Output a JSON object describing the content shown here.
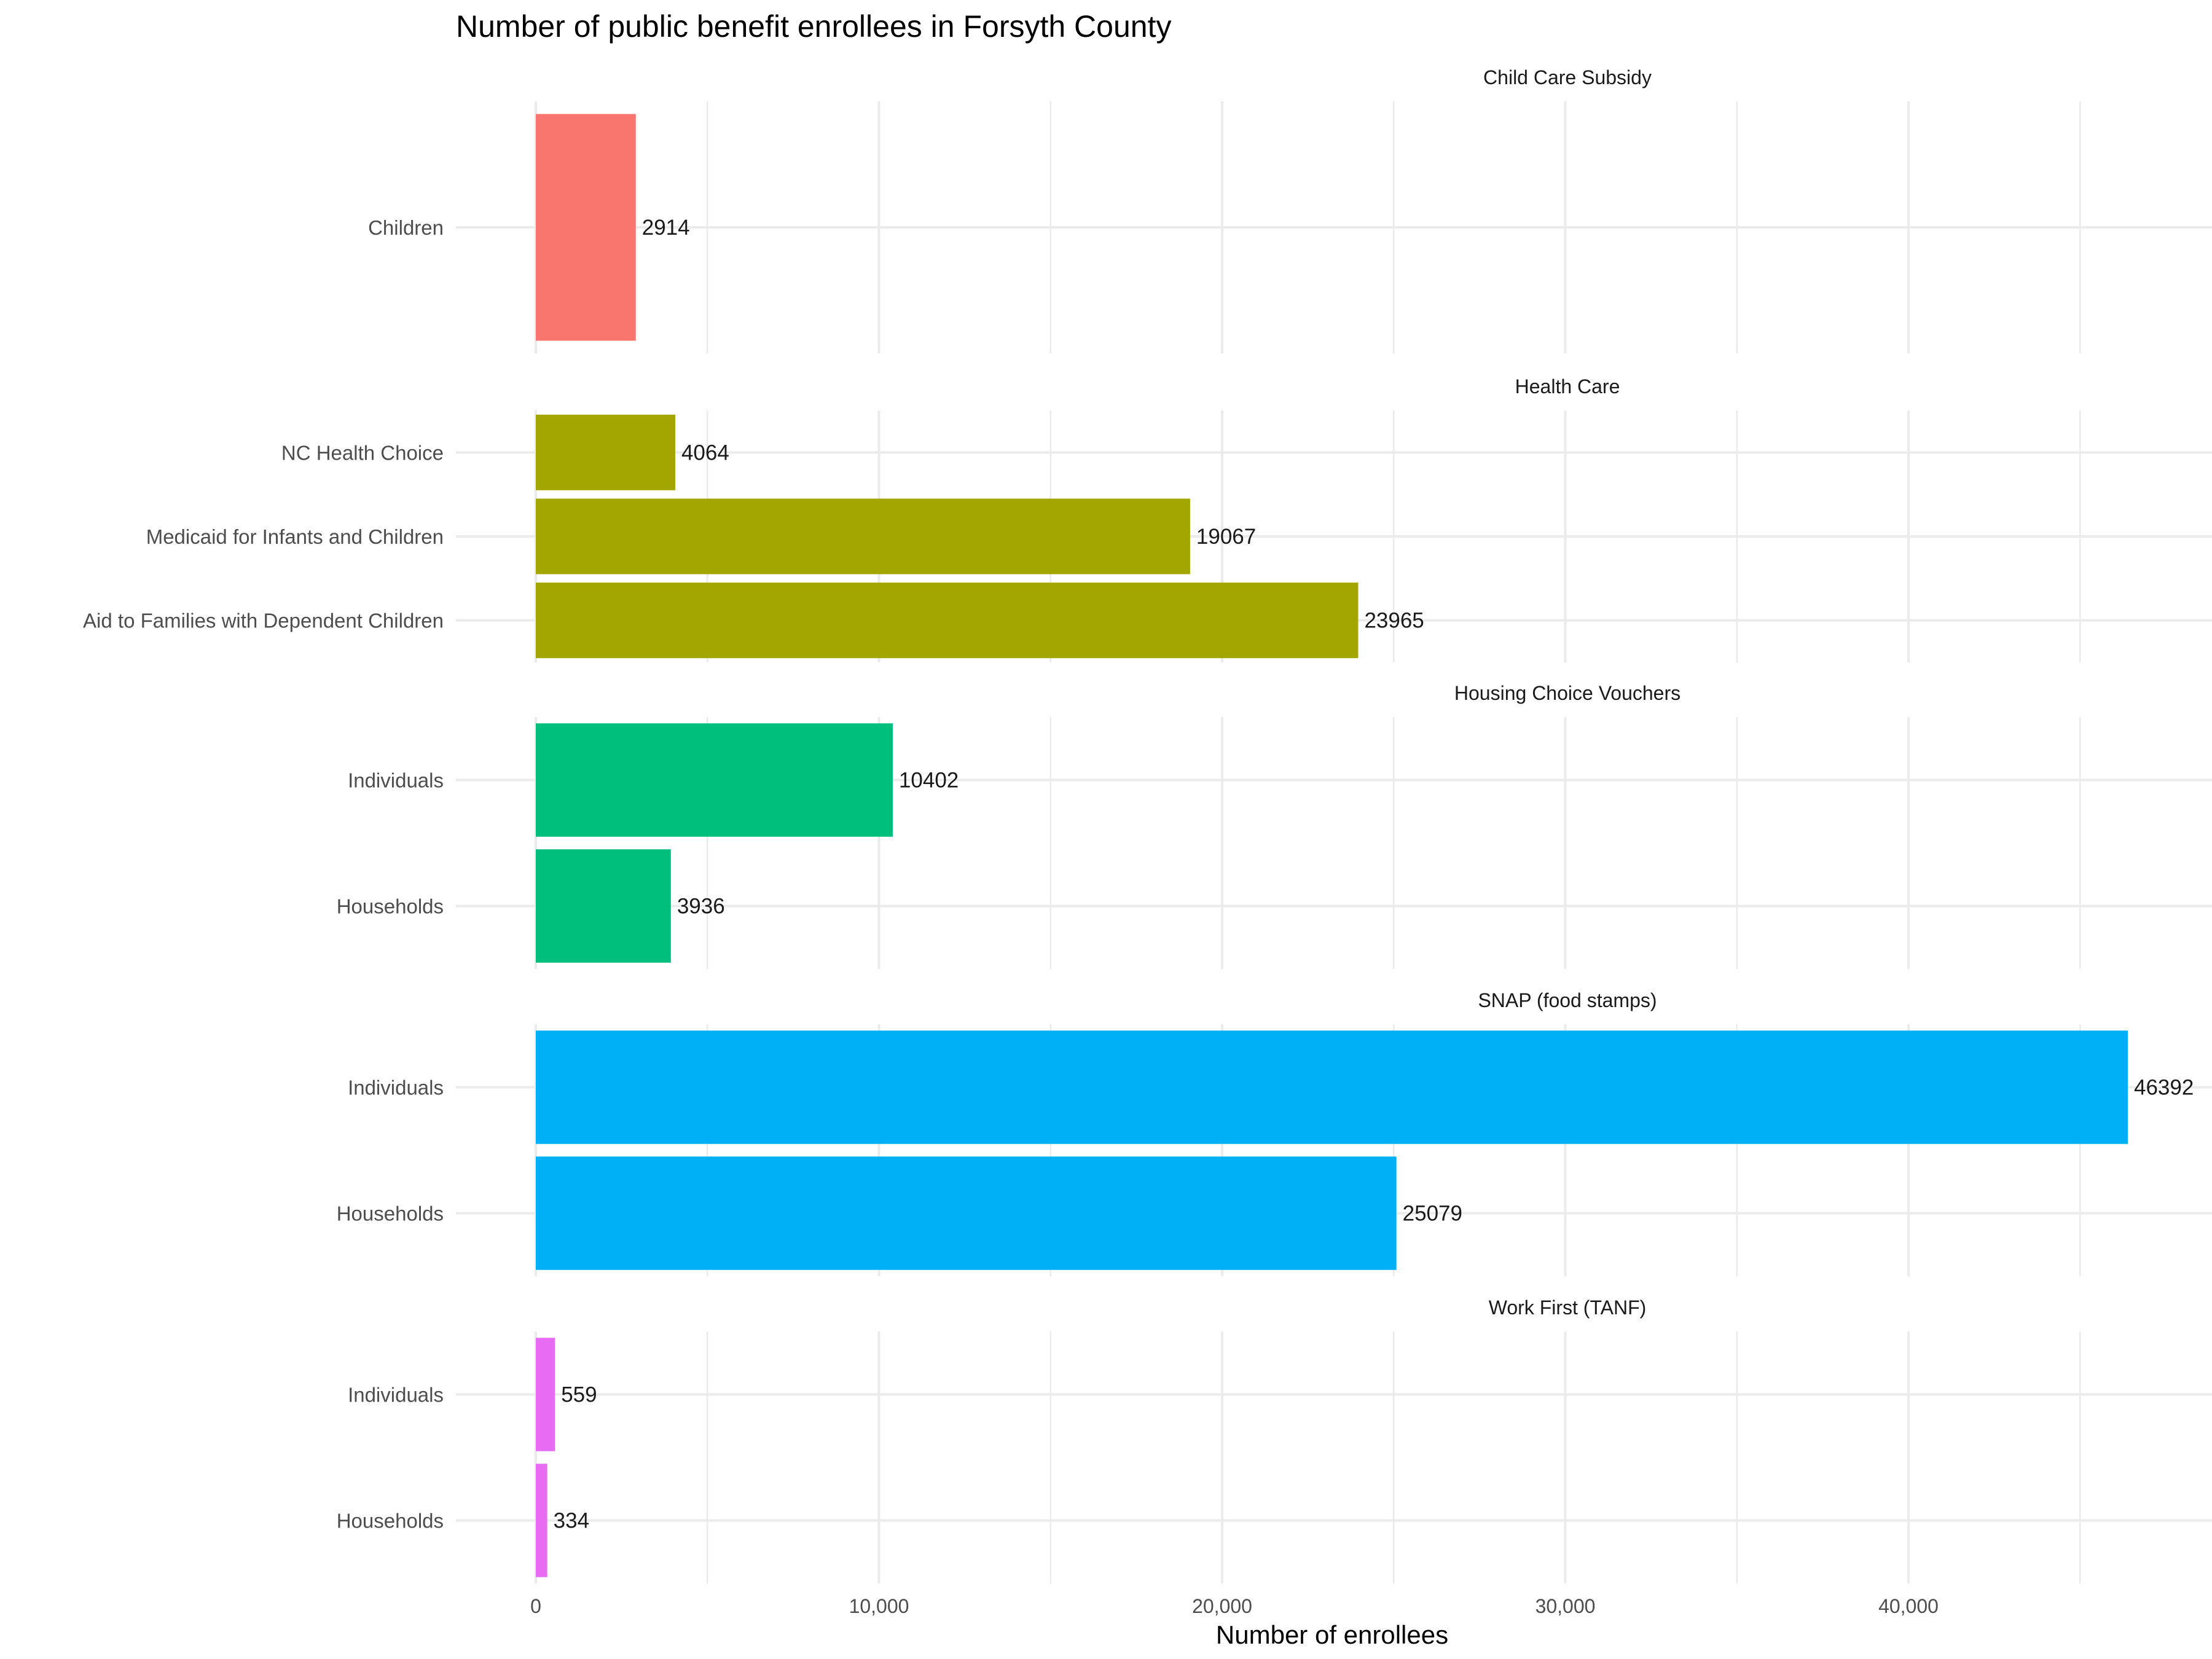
{
  "chart_data": {
    "type": "bar",
    "orientation": "horizontal",
    "title": "Number of public benefit enrollees in Forsyth County",
    "xlabel": "Number of enrollees",
    "ylabel": "",
    "xlim": [
      0,
      47500
    ],
    "x_ticks": [
      0,
      10000,
      20000,
      30000,
      40000
    ],
    "x_tick_labels": [
      "0",
      "10,000",
      "20,000",
      "30,000",
      "40,000"
    ],
    "grid": true,
    "legend": "none",
    "facets": [
      {
        "name": "Child Care Subsidy",
        "color": "#F8766D",
        "categories": [
          "Children"
        ],
        "values": [
          2914
        ]
      },
      {
        "name": "Health Care",
        "color": "#A3A500",
        "categories": [
          "NC Health Choice",
          "Medicaid for Infants and Children",
          "Aid to Families with Dependent Children"
        ],
        "values": [
          4064,
          19067,
          23965
        ]
      },
      {
        "name": "Housing Choice Vouchers",
        "color": "#00BF7D",
        "categories": [
          "Individuals",
          "Households"
        ],
        "values": [
          10402,
          3936
        ]
      },
      {
        "name": "SNAP (food stamps)",
        "color": "#00B0F6",
        "categories": [
          "Individuals",
          "Households"
        ],
        "values": [
          46392,
          25079
        ]
      },
      {
        "name": "Work First (TANF)",
        "color": "#E76BF3",
        "categories": [
          "Individuals",
          "Households"
        ],
        "values": [
          559,
          334
        ]
      }
    ]
  }
}
